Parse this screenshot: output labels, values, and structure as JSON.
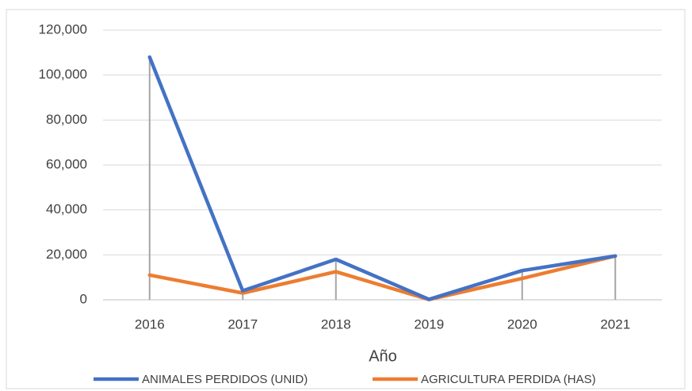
{
  "chart_data": {
    "type": "line",
    "x_label": "Año",
    "categories": [
      "2016",
      "2017",
      "2018",
      "2019",
      "2020",
      "2021"
    ],
    "series": [
      {
        "name": "ANIMALES PERDIDOS (UNID)",
        "color": "#4472c4",
        "values": [
          108000,
          4000,
          18000,
          200,
          13000,
          19500
        ]
      },
      {
        "name": "AGRICULTURA PERDIDA (HAS)",
        "color": "#ed7d31",
        "values": [
          11000,
          3000,
          12500,
          100,
          9500,
          19500
        ]
      }
    ],
    "ylim": [
      0,
      120000
    ],
    "yticks": [
      0,
      {
        "value": 20000,
        "label": "20,000"
      },
      {
        "value": 40000,
        "label": "40,000"
      },
      {
        "value": 60000,
        "label": "60,000"
      },
      {
        "value": 80000,
        "label": "80,000"
      },
      {
        "value": 100000,
        "label": "100,000"
      },
      {
        "value": 120000,
        "label": "120,000"
      }
    ],
    "grid": true,
    "drop_lines": true,
    "legend": "bottom"
  }
}
